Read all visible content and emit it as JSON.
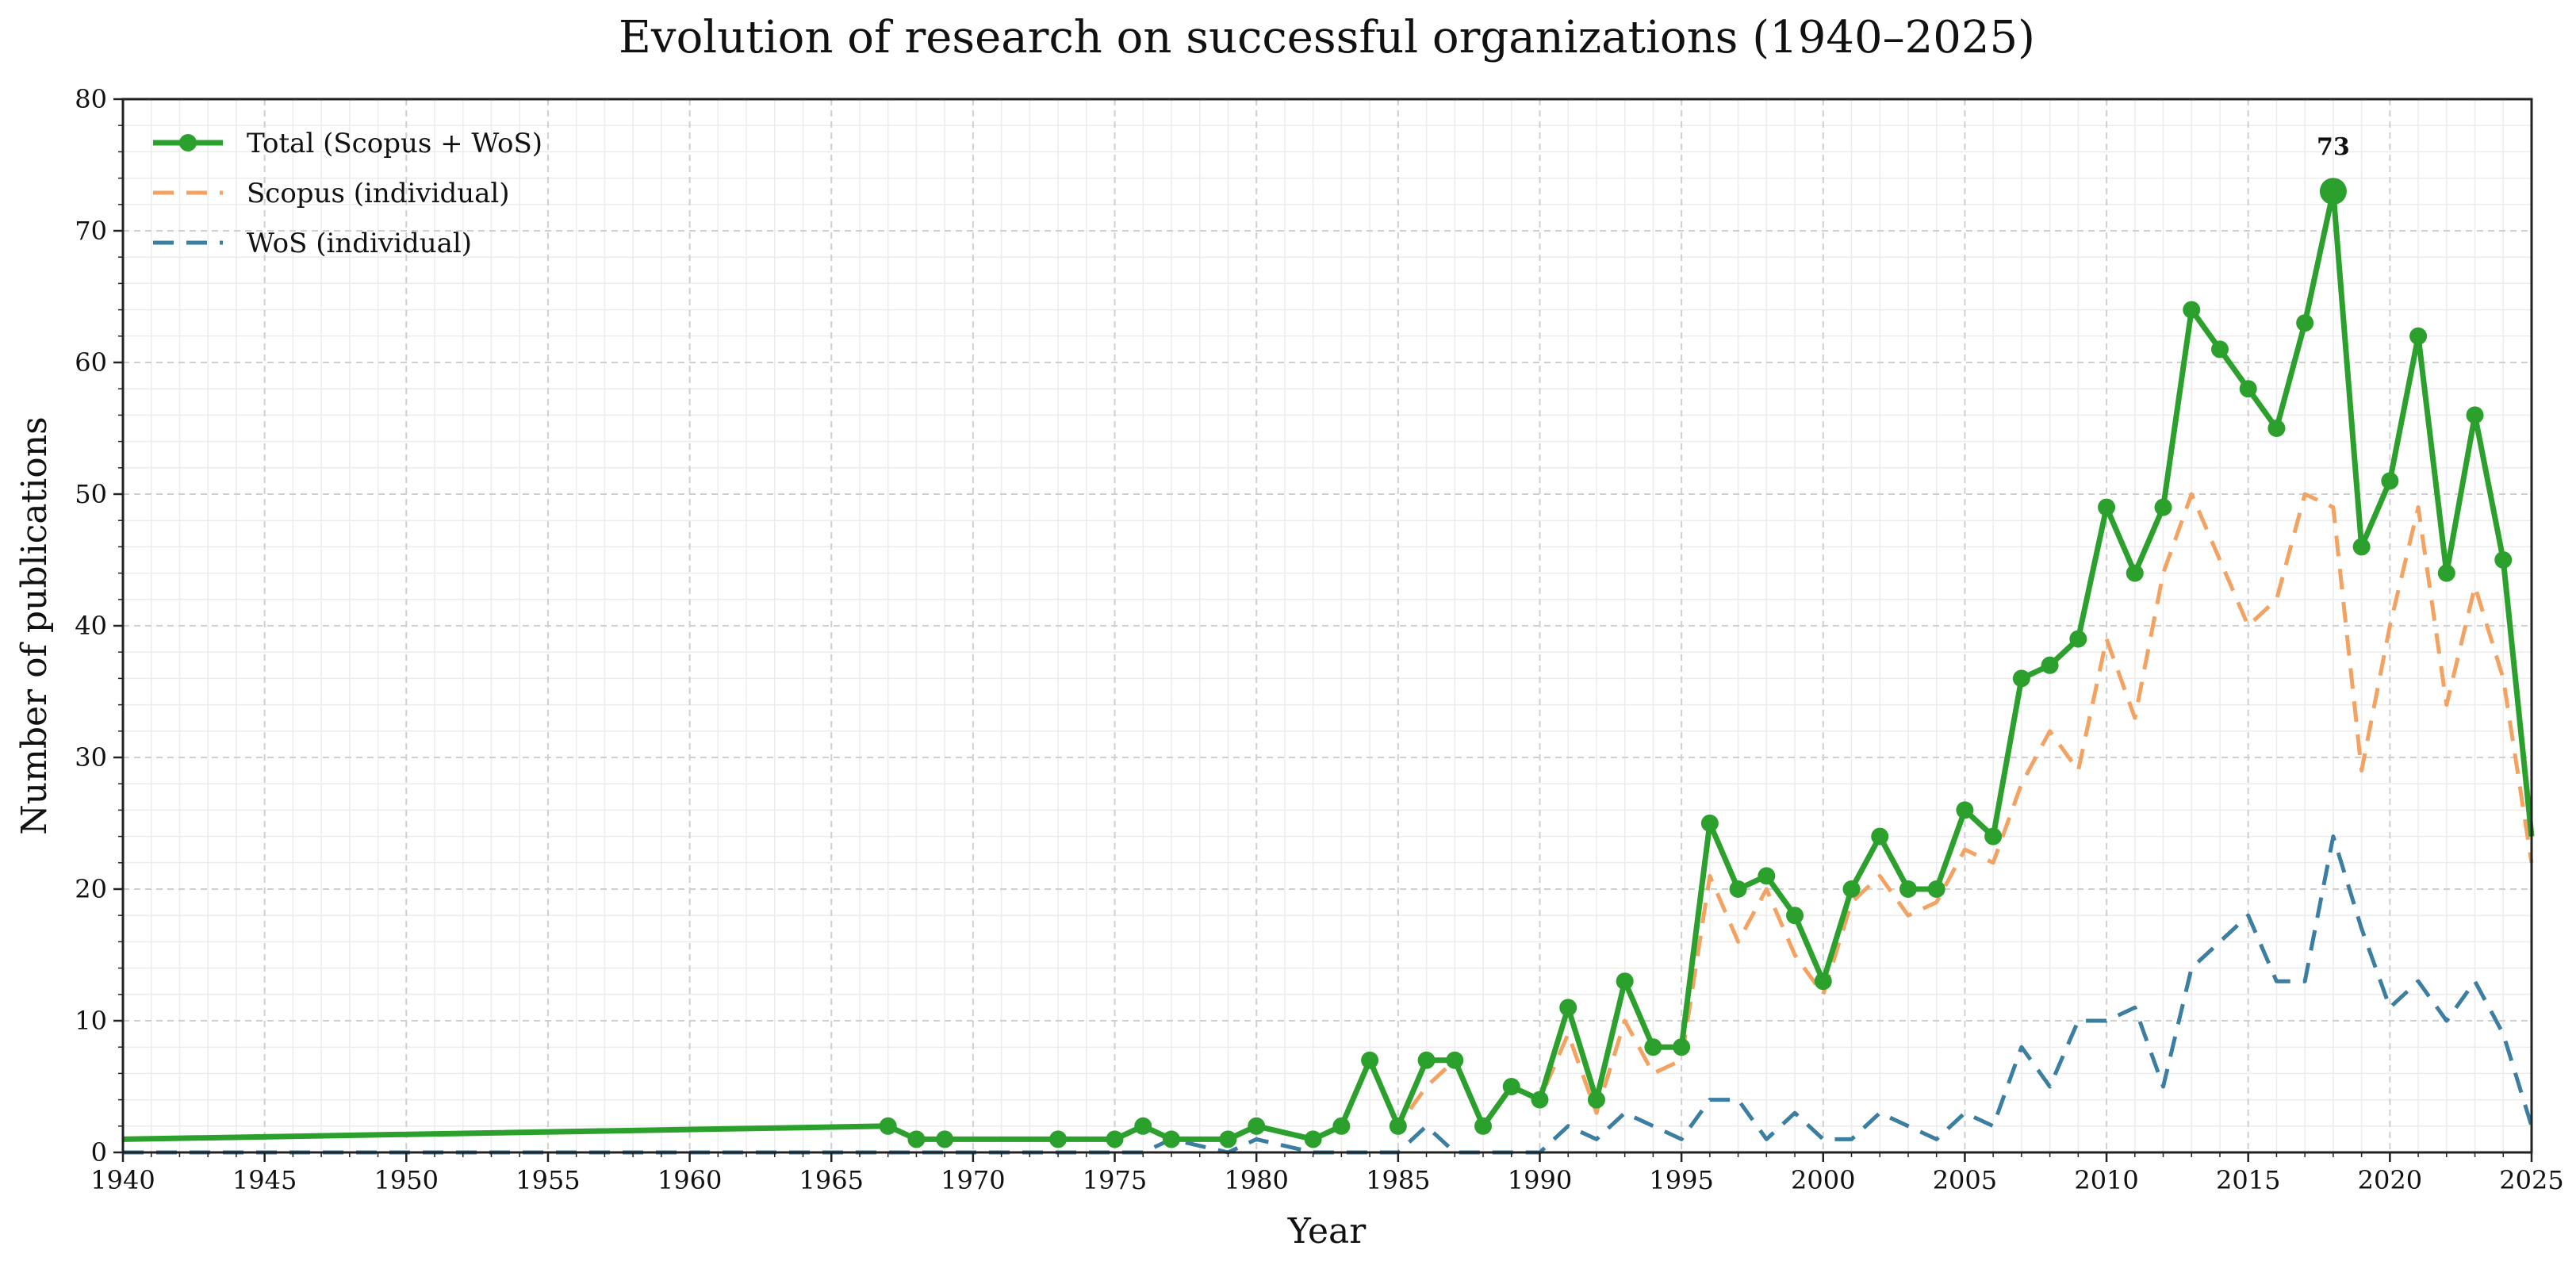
{
  "chart_data": {
    "type": "line",
    "title": "Evolution of research on successful organizations (1940–2025)",
    "xlabel": "Year",
    "ylabel": "Number of publications",
    "xlim": [
      1940,
      2025
    ],
    "ylim": [
      0,
      80
    ],
    "x_ticks": [
      "1940",
      "1945",
      "1950",
      "1955",
      "1960",
      "1965",
      "1970",
      "1975",
      "1980",
      "1985",
      "1990",
      "1995",
      "2000",
      "2005",
      "2010",
      "2015",
      "2020",
      "2025"
    ],
    "y_ticks": [
      "0",
      "10",
      "20",
      "30",
      "40",
      "50",
      "60",
      "70",
      "80"
    ],
    "grid": true,
    "legend_position": "top-left",
    "peak_annotation": {
      "year": 2018,
      "value": 73,
      "label": "73"
    },
    "series": [
      {
        "name": "Total (Scopus + WoS)",
        "style": "solid-markers",
        "color": "#2ca02c",
        "x": [
          1940,
          1967,
          1968,
          1969,
          1973,
          1975,
          1976,
          1977,
          1979,
          1980,
          1982,
          1983,
          1984,
          1985,
          1986,
          1987,
          1988,
          1989,
          1990,
          1991,
          1992,
          1993,
          1994,
          1995,
          1996,
          1997,
          1998,
          1999,
          2000,
          2001,
          2002,
          2003,
          2004,
          2005,
          2006,
          2007,
          2008,
          2009,
          2010,
          2011,
          2012,
          2013,
          2014,
          2015,
          2016,
          2017,
          2018,
          2019,
          2020,
          2021,
          2022,
          2023,
          2024,
          2025
        ],
        "values": [
          1,
          2,
          1,
          1,
          1,
          1,
          2,
          1,
          1,
          2,
          1,
          2,
          7,
          2,
          7,
          7,
          2,
          5,
          4,
          11,
          4,
          13,
          8,
          8,
          25,
          20,
          21,
          18,
          13,
          20,
          24,
          20,
          20,
          26,
          24,
          36,
          37,
          39,
          49,
          44,
          49,
          64,
          61,
          58,
          55,
          63,
          73,
          46,
          51,
          62,
          44,
          56,
          45,
          24
        ]
      },
      {
        "name": "Scopus (individual)",
        "style": "dashed",
        "color": "#f4a261",
        "x": [
          1940,
          1967,
          1968,
          1969,
          1973,
          1975,
          1976,
          1977,
          1979,
          1980,
          1982,
          1983,
          1984,
          1985,
          1986,
          1987,
          1988,
          1989,
          1990,
          1991,
          1992,
          1993,
          1994,
          1995,
          1996,
          1997,
          1998,
          1999,
          2000,
          2001,
          2002,
          2003,
          2004,
          2005,
          2006,
          2007,
          2008,
          2009,
          2010,
          2011,
          2012,
          2013,
          2014,
          2015,
          2016,
          2017,
          2018,
          2019,
          2020,
          2021,
          2022,
          2023,
          2024,
          2025
        ],
        "values": [
          1,
          2,
          1,
          1,
          1,
          1,
          2,
          1,
          1,
          2,
          1,
          2,
          7,
          2,
          5,
          7,
          2,
          5,
          4,
          9,
          3,
          10,
          6,
          7,
          21,
          16,
          20,
          15,
          12,
          19,
          21,
          18,
          19,
          23,
          22,
          28,
          32,
          29,
          39,
          33,
          44,
          50,
          45,
          40,
          42,
          50,
          49,
          29,
          40,
          49,
          34,
          43,
          36,
          22
        ]
      },
      {
        "name": "WoS (individual)",
        "style": "dashed",
        "color": "#3b7ea1",
        "x": [
          1940,
          1967,
          1968,
          1969,
          1973,
          1975,
          1976,
          1977,
          1979,
          1980,
          1982,
          1983,
          1984,
          1985,
          1986,
          1987,
          1988,
          1989,
          1990,
          1991,
          1992,
          1993,
          1994,
          1995,
          1996,
          1997,
          1998,
          1999,
          2000,
          2001,
          2002,
          2003,
          2004,
          2005,
          2006,
          2007,
          2008,
          2009,
          2010,
          2011,
          2012,
          2013,
          2014,
          2015,
          2016,
          2017,
          2018,
          2019,
          2020,
          2021,
          2022,
          2023,
          2024,
          2025
        ],
        "values": [
          0,
          0,
          0,
          0,
          0,
          0,
          0,
          1,
          0,
          1,
          0,
          0,
          0,
          0,
          2,
          0,
          0,
          0,
          0,
          2,
          1,
          3,
          2,
          1,
          4,
          4,
          1,
          3,
          1,
          1,
          3,
          2,
          1,
          3,
          2,
          8,
          5,
          10,
          10,
          11,
          5,
          14,
          16,
          18,
          13,
          13,
          24,
          17,
          11,
          13,
          10,
          13,
          9,
          2
        ]
      }
    ]
  }
}
